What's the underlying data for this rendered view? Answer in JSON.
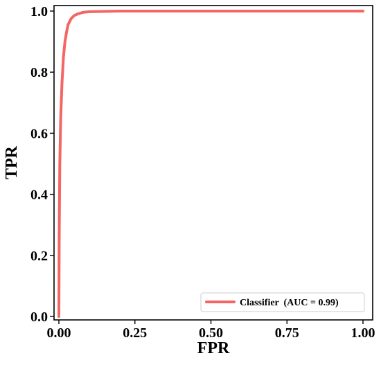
{
  "chart_data": {
    "type": "line",
    "xlabel": "FPR",
    "ylabel": "TPR",
    "xlim": [
      0.0,
      1.0
    ],
    "ylim": [
      0.0,
      1.0
    ],
    "x_ticks": [
      0.0,
      0.25,
      0.5,
      0.75,
      1.0
    ],
    "x_tick_labels": [
      "0.00",
      "0.25",
      "0.50",
      "0.75",
      "1.00"
    ],
    "y_ticks": [
      0.0,
      0.2,
      0.4,
      0.6,
      0.8,
      1.0
    ],
    "y_tick_labels": [
      "0.0",
      "0.2",
      "0.4",
      "0.6",
      "0.8",
      "1.0"
    ],
    "grid": false,
    "legend_position": "bottom-right",
    "series": [
      {
        "name": "Classifier  (AUC = 0.99)",
        "color": "#f46565",
        "x": [
          0.0,
          0.001,
          0.003,
          0.006,
          0.01,
          0.015,
          0.02,
          0.025,
          0.03,
          0.04,
          0.05,
          0.06,
          0.08,
          0.1,
          0.15,
          0.2,
          0.3,
          0.5,
          0.75,
          1.0
        ],
        "y": [
          0.0,
          0.25,
          0.5,
          0.65,
          0.76,
          0.85,
          0.9,
          0.93,
          0.955,
          0.975,
          0.985,
          0.99,
          0.996,
          0.998,
          0.999,
          1.0,
          1.0,
          1.0,
          1.0,
          1.0
        ]
      }
    ]
  }
}
